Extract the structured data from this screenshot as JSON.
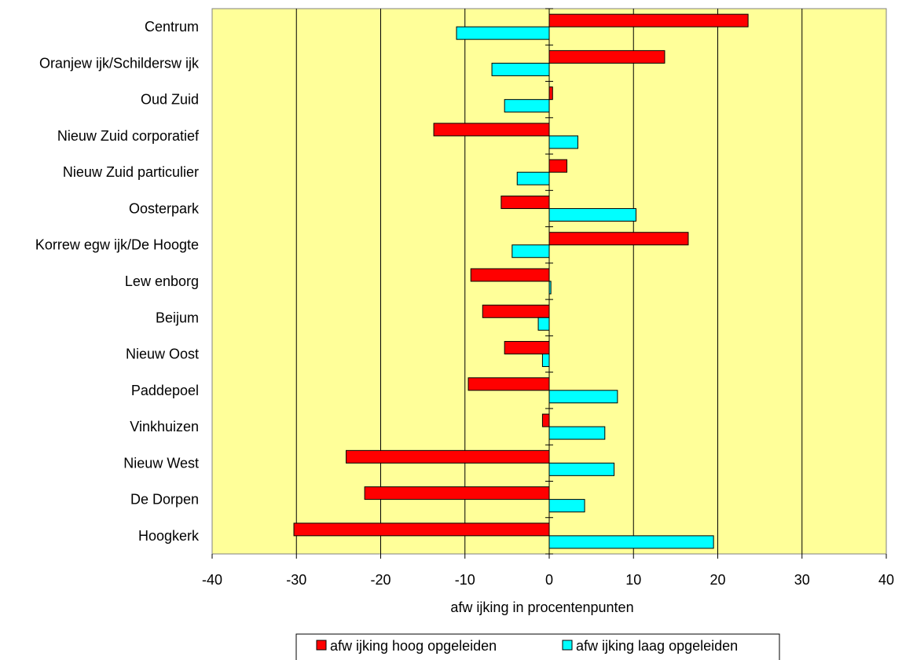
{
  "chart_data": {
    "type": "bar",
    "orientation": "horizontal",
    "title": "",
    "categories": [
      "Centrum",
      "Oranjew ijk/Schildersw ijk",
      "Oud Zuid",
      "Nieuw  Zuid corporatief",
      "Nieuw  Zuid particulier",
      "Oosterpark",
      "Korrew egw ijk/De Hoogte",
      "Lew enborg",
      "Beijum",
      "Nieuw  Oost",
      "Paddepoel",
      "Vinkhuizen",
      "Nieuw  West",
      "De Dorpen",
      "Hoogkerk"
    ],
    "series": [
      {
        "name": "afw ijking hoog opgeleiden",
        "color": "#ff0000",
        "values": [
          23.6,
          13.7,
          0.4,
          -13.7,
          2.1,
          -5.7,
          16.5,
          -9.3,
          -7.9,
          -5.3,
          -9.6,
          -0.8,
          -24.1,
          -21.9,
          -30.3
        ]
      },
      {
        "name": "afw ijking laag opgeleiden",
        "color": "#00ffff",
        "values": [
          -11.0,
          -6.8,
          -5.3,
          3.4,
          -3.8,
          10.3,
          -4.4,
          0.2,
          -1.3,
          -0.8,
          8.1,
          6.6,
          7.7,
          4.2,
          19.5
        ]
      }
    ],
    "xlabel": "afw ijking in procentenpunten",
    "ylabel": "",
    "xlim": [
      -40,
      40
    ],
    "xticks": [
      -40,
      -30,
      -20,
      -10,
      0,
      10,
      20,
      30,
      40
    ],
    "xtick_labels": [
      "-40",
      "-30",
      "-20",
      "-10",
      "0",
      "10",
      "20",
      "30",
      "40"
    ],
    "grid": "vertical",
    "legend_position": "bottom",
    "plot_background": "#ffff99"
  }
}
